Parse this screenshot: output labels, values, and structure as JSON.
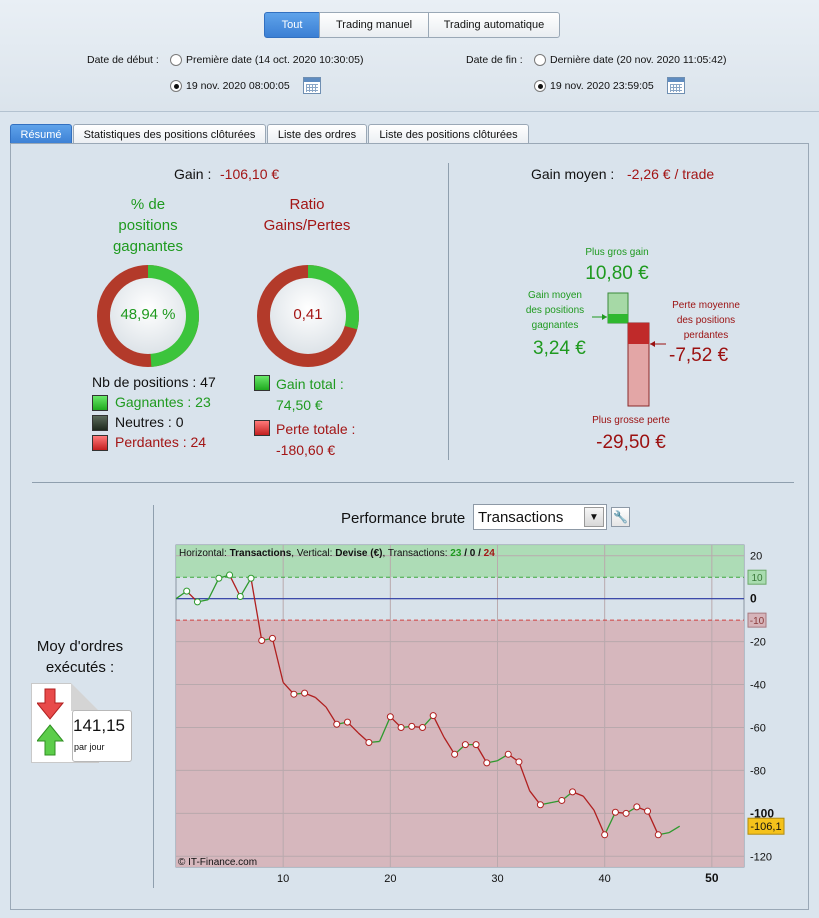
{
  "filter": {
    "tabs": [
      "Tout",
      "Trading manuel",
      "Trading automatique"
    ],
    "start_label": "Date de début :",
    "start_option1": "Première date (14 oct. 2020 10:30:05)",
    "start_option2": "19 nov. 2020 08:00:05",
    "end_label": "Date de fin :",
    "end_option1": "Dernière date (20 nov. 2020 11:05:42)",
    "end_option2": "19 nov. 2020 23:59:05"
  },
  "tabs": [
    "Résumé",
    "Statistiques des positions clôturées",
    "Liste des ordres",
    "Liste des positions clôturées"
  ],
  "summary": {
    "gain_label": "Gain :",
    "gain_value": "-106,10 €",
    "pct_title_l1": "% de",
    "pct_title_l2": "positions",
    "pct_title_l3": "gagnantes",
    "pct_value": "48,94 %",
    "pct_fraction": 0.4894,
    "ratio_title_l1": "Ratio",
    "ratio_title_l2": "Gains/Pertes",
    "ratio_value": "0,41",
    "ratio_fraction": 0.2922,
    "nb_positions": "Nb de positions : 47",
    "gagnantes": "Gagnantes : 23",
    "neutres": "Neutres : 0",
    "perdantes": "Perdantes : 24",
    "gain_total_label": "Gain total :",
    "gain_total_value": "74,50 €",
    "perte_totale_label": "Perte totale :",
    "perte_totale_value": "-180,60 €"
  },
  "average": {
    "label": "Gain moyen :",
    "value": "-2,26 € / trade",
    "plus_gros_gain_label": "Plus gros gain",
    "plus_gros_gain_value": "10,80 €",
    "gain_moyen_l1": "Gain moyen",
    "gain_moyen_l2": "des positions",
    "gain_moyen_l3": "gagnantes",
    "gain_moyen_value": "3,24 €",
    "perte_moyenne_l1": "Perte moyenne",
    "perte_moyenne_l2": "des positions",
    "perte_moyenne_l3": "perdantes",
    "perte_moyenne_value": "-7,52 €",
    "plus_grosse_perte_label": "Plus grosse perte",
    "plus_grosse_perte_value": "-29,50 €"
  },
  "orders": {
    "label_l1": "Moy d'ordres",
    "label_l2": "exécutés :",
    "value": "141,15",
    "unit": "par jour"
  },
  "performance": {
    "title": "Performance brute",
    "select_value": "Transactions"
  },
  "colors": {
    "win": "#1f9a1f",
    "loss": "#a31515",
    "accent": "#3b7fd4"
  },
  "chart_data": {
    "type": "line",
    "legend_h": "Horizontal:",
    "legend_h_value": "Transactions",
    "legend_v": ", Vertical:",
    "legend_v_value": "Devise (€)",
    "legend_t": ", Transactions:",
    "legend_wins": "23",
    "legend_sep1": "/",
    "legend_neutral": "0",
    "legend_sep2": "/",
    "legend_losses": "24",
    "watermark": "© IT-Finance.com",
    "xlim": [
      0,
      53
    ],
    "ylim": [
      -125,
      25
    ],
    "x_ticks": [
      "10",
      "20",
      "30",
      "40",
      "50"
    ],
    "y_ticks": [
      "20",
      "0",
      "-20",
      "-40",
      "-60",
      "-80",
      "-100",
      "-120"
    ],
    "band_upper_label": "10",
    "band_lower_label": "-10",
    "band_upper_value": 10,
    "band_lower_value": -10,
    "last_value_label": "-106,1",
    "x": [
      0,
      1,
      2,
      3,
      4,
      5,
      6,
      7,
      8,
      9,
      10,
      11,
      12,
      13,
      14,
      15,
      16,
      17,
      18,
      19,
      20,
      21,
      22,
      23,
      24,
      25,
      26,
      27,
      28,
      29,
      30,
      31,
      32,
      33,
      34,
      35,
      36,
      37,
      38,
      39,
      40,
      41,
      42,
      43,
      44,
      45,
      46,
      47
    ],
    "y": [
      0,
      3.5,
      -1.5,
      -0.5,
      9.5,
      11,
      1,
      9.5,
      -19.5,
      -18.5,
      -39,
      -44.5,
      -44,
      -46,
      -50.5,
      -58.5,
      -57.5,
      -62.5,
      -67,
      -66.5,
      -55,
      -60,
      -59.5,
      -60,
      -54.5,
      -64.5,
      -72.5,
      -68,
      -68,
      -76.5,
      -75.5,
      -72.5,
      -76,
      -89.5,
      -96,
      -95,
      -94,
      -90,
      -92,
      -98.5,
      -110,
      -99.5,
      -100,
      -97,
      -99,
      -110,
      -109,
      -106
    ]
  }
}
